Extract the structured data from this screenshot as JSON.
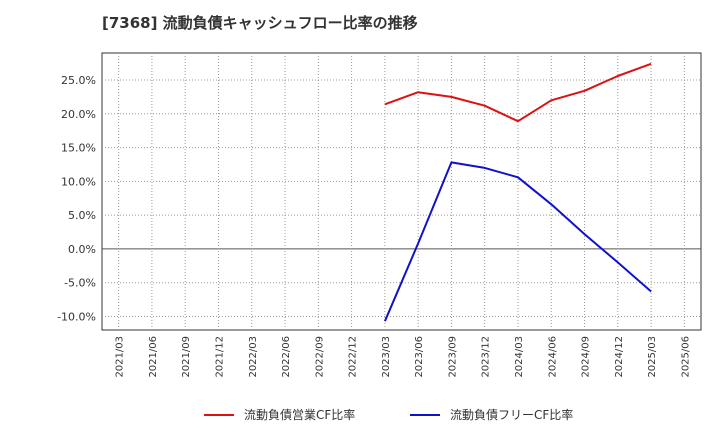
{
  "chart_data": {
    "type": "line",
    "title": "[7368]  流動負債キャッシュフロー比率の推移",
    "xlabel": "",
    "ylabel": "",
    "x": [
      "2021/03",
      "2021/06",
      "2021/09",
      "2021/12",
      "2022/03",
      "2022/06",
      "2022/09",
      "2022/12",
      "2023/03",
      "2023/06",
      "2023/09",
      "2023/12",
      "2024/03",
      "2024/06",
      "2024/09",
      "2024/12",
      "2025/03",
      "2025/06"
    ],
    "ylim": [
      -12.0,
      29.0
    ],
    "yticks": [
      25.0,
      20.0,
      15.0,
      10.0,
      5.0,
      0.0,
      -5.0,
      -10.0
    ],
    "ytick_labels": [
      "25.0%",
      "20.0%",
      "15.0%",
      "10.0%",
      "5.0%",
      "0.0%",
      "-5.0%",
      "-10.0%"
    ],
    "grid": true,
    "legend_position": "bottom",
    "series": [
      {
        "name": "流動負債営業CF比率",
        "color": "#dd1111",
        "values": [
          null,
          null,
          null,
          null,
          null,
          null,
          null,
          null,
          21.4,
          23.2,
          22.5,
          21.2,
          18.9,
          22.0,
          23.4,
          25.6,
          27.4,
          null
        ]
      },
      {
        "name": "流動負債フリーCF比率",
        "color": "#1111cc",
        "values": [
          null,
          null,
          null,
          null,
          null,
          null,
          null,
          null,
          -10.7,
          0.8,
          12.8,
          12.0,
          10.6,
          6.6,
          2.2,
          -2.0,
          -6.3,
          null
        ]
      }
    ]
  }
}
